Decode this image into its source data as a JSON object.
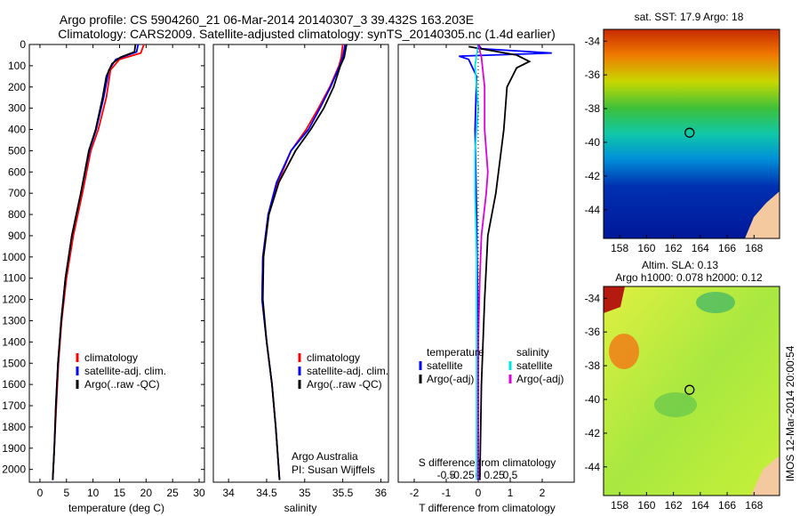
{
  "title_line1": "Argo profile: CS 5904260_21 06-Mar-2014 20140307_3 39.432S 163.203E",
  "title_line2": "Climatology: CARS2009. Satellite-adjusted climatology: synTS_20140305.nc (1.4d earlier)",
  "colors": {
    "clim": "#ff0000",
    "sat": "#0000ff",
    "argo": "#000000",
    "sal_sat": "#00e5e5",
    "sal_argo": "#dd00dd"
  },
  "chart_data": [
    {
      "type": "line",
      "xlabel": "temperature (deg C)",
      "xlim": [
        -2,
        31
      ],
      "xticks": [
        0,
        5,
        10,
        15,
        20,
        25,
        30
      ],
      "ylim": [
        2060,
        0
      ],
      "yticks": [
        0,
        100,
        200,
        300,
        400,
        500,
        600,
        700,
        800,
        900,
        1000,
        1100,
        1200,
        1300,
        1400,
        1500,
        1600,
        1700,
        1800,
        1900,
        2000
      ],
      "legend": [
        "climatology",
        "satellite-adj. clim.",
        "Argo(..raw -QC)"
      ],
      "series": [
        {
          "name": "climatology",
          "points": [
            [
              19.6,
              0
            ],
            [
              19,
              40
            ],
            [
              15,
              70
            ],
            [
              13.3,
              120
            ],
            [
              12.5,
              250
            ],
            [
              11,
              400
            ],
            [
              9.6,
              500
            ],
            [
              8,
              700
            ],
            [
              6.3,
              900
            ],
            [
              5,
              1100
            ],
            [
              4.1,
              1300
            ],
            [
              3.5,
              1500
            ],
            [
              3.1,
              1700
            ],
            [
              2.7,
              1900
            ],
            [
              2.4,
              2050
            ]
          ]
        },
        {
          "name": "satellite-adj. clim.",
          "points": [
            [
              18.5,
              0
            ],
            [
              18.2,
              35
            ],
            [
              14.3,
              70
            ],
            [
              13,
              120
            ],
            [
              12,
              250
            ],
            [
              10.6,
              400
            ],
            [
              9.3,
              500
            ],
            [
              7.7,
              700
            ],
            [
              6,
              900
            ],
            [
              4.8,
              1100
            ],
            [
              4,
              1300
            ],
            [
              3.4,
              1500
            ],
            [
              3,
              1700
            ],
            [
              2.7,
              1900
            ],
            [
              2.4,
              2050
            ]
          ]
        },
        {
          "name": "Argo(..raw -QC)",
          "points": [
            [
              18,
              0
            ],
            [
              17.8,
              35
            ],
            [
              15.2,
              60
            ],
            [
              13.6,
              90
            ],
            [
              12.5,
              150
            ],
            [
              11.8,
              250
            ],
            [
              10.5,
              400
            ],
            [
              9.2,
              500
            ],
            [
              7.7,
              700
            ],
            [
              6,
              900
            ],
            [
              4.8,
              1100
            ],
            [
              4,
              1300
            ],
            [
              3.4,
              1500
            ],
            [
              3,
              1700
            ],
            [
              2.7,
              1900
            ],
            [
              2.4,
              2050
            ]
          ]
        }
      ]
    },
    {
      "type": "line",
      "xlabel": "salinity",
      "xlim": [
        33.8,
        36.1
      ],
      "xticks": [
        34,
        34.5,
        35,
        35.5,
        36
      ],
      "ylim": [
        2060,
        0
      ],
      "legend": [
        "climatology",
        "satellite-adj. clim.",
        "Argo(..raw -QC)"
      ],
      "series": [
        {
          "name": "climatology",
          "points": [
            [
              35.5,
              0
            ],
            [
              35.48,
              60
            ],
            [
              35.45,
              100
            ],
            [
              35.33,
              200
            ],
            [
              35.18,
              300
            ],
            [
              35.02,
              400
            ],
            [
              34.82,
              500
            ],
            [
              34.65,
              650
            ],
            [
              34.52,
              800
            ],
            [
              34.45,
              1000
            ],
            [
              34.44,
              1200
            ],
            [
              34.5,
              1400
            ],
            [
              34.57,
              1600
            ],
            [
              34.62,
              1800
            ],
            [
              34.67,
              2050
            ]
          ]
        },
        {
          "name": "satellite-adj. clim.",
          "points": [
            [
              35.53,
              0
            ],
            [
              35.5,
              60
            ],
            [
              35.46,
              100
            ],
            [
              35.34,
              200
            ],
            [
              35.2,
              300
            ],
            [
              35.05,
              400
            ],
            [
              34.82,
              500
            ],
            [
              34.63,
              650
            ],
            [
              34.52,
              800
            ],
            [
              34.45,
              1000
            ],
            [
              34.44,
              1200
            ],
            [
              34.5,
              1400
            ],
            [
              34.57,
              1600
            ],
            [
              34.62,
              1800
            ],
            [
              34.67,
              2050
            ]
          ]
        },
        {
          "name": "Argo(..raw -QC)",
          "points": [
            [
              35.55,
              0
            ],
            [
              35.52,
              60
            ],
            [
              35.47,
              100
            ],
            [
              35.38,
              200
            ],
            [
              35.25,
              300
            ],
            [
              35.08,
              400
            ],
            [
              34.88,
              500
            ],
            [
              34.66,
              650
            ],
            [
              34.53,
              800
            ],
            [
              34.46,
              1000
            ],
            [
              34.45,
              1200
            ],
            [
              34.5,
              1400
            ],
            [
              34.57,
              1600
            ],
            [
              34.62,
              1800
            ],
            [
              34.67,
              2050
            ]
          ]
        }
      ]
    },
    {
      "type": "line",
      "xlabel": "T difference from climatology",
      "xlim": [
        -2.5,
        3
      ],
      "xticks": [
        -2,
        -1,
        0,
        1,
        2
      ],
      "x2label": "S difference from climatology",
      "x2ticks": [
        "-0.5",
        "-0.25",
        "0",
        "0.25",
        "0.5"
      ],
      "ylim": [
        2060,
        0
      ],
      "legend": [
        "temperature",
        "satellite",
        "Argo(-adj)",
        "salinity",
        "satellite",
        "Argo(-adj)"
      ],
      "series": [
        {
          "name": "satellite",
          "points": [
            [
              0,
              0
            ],
            [
              0.1,
              20
            ],
            [
              2.3,
              40
            ],
            [
              -0.6,
              55
            ],
            [
              -0.3,
              70
            ],
            [
              -0.05,
              150
            ],
            [
              -0.1,
              400
            ],
            [
              -0.05,
              800
            ],
            [
              0,
              1400
            ],
            [
              0,
              2050
            ]
          ]
        },
        {
          "name": "Argo(-adj)",
          "points": [
            [
              -0.3,
              10
            ],
            [
              1.2,
              50
            ],
            [
              1.6,
              80
            ],
            [
              1.2,
              110
            ],
            [
              0.9,
              200
            ],
            [
              0.8,
              400
            ],
            [
              0.55,
              700
            ],
            [
              0.3,
              900
            ],
            [
              0.2,
              1200
            ],
            [
              0.1,
              1600
            ],
            [
              0.05,
              2050
            ]
          ]
        },
        {
          "name": "satellite",
          "points": [
            [
              0,
              0
            ],
            [
              -0.1,
              100
            ],
            [
              0,
              300
            ],
            [
              -0.1,
              500
            ],
            [
              -0.1,
              700
            ],
            [
              -0.05,
              1000
            ],
            [
              -0.05,
              1500
            ],
            [
              -0.05,
              2050
            ]
          ]
        },
        {
          "name": "Argo(-adj)",
          "points": [
            [
              0,
              0
            ],
            [
              0.1,
              60
            ],
            [
              0.2,
              200
            ],
            [
              0.2,
              400
            ],
            [
              0.3,
              600
            ],
            [
              0.25,
              700
            ],
            [
              0.1,
              900
            ],
            [
              0.05,
              1100
            ],
            [
              0,
              1400
            ],
            [
              0,
              2050
            ]
          ]
        }
      ]
    },
    {
      "type": "heatmap",
      "title": "sat. SST: 17.9 Argo: 18",
      "xticks": [
        158,
        160,
        162,
        164,
        166,
        168
      ],
      "yticks": [
        -34,
        -36,
        -38,
        -40,
        -42,
        -44
      ],
      "marker": [
        163.2,
        -39.43
      ]
    },
    {
      "type": "heatmap",
      "title": "Altim. SLA: 0.13",
      "subtitle": "Argo h1000: 0.078 h2000: 0.12",
      "xticks": [
        158,
        160,
        162,
        164,
        166,
        168
      ],
      "yticks": [
        -34,
        -36,
        -38,
        -40,
        -42,
        -44
      ],
      "marker": [
        163.2,
        -39.43
      ]
    }
  ],
  "annotations": {
    "org": "Argo Australia",
    "pi": "PI: Susan Wijffels"
  },
  "side_label": "IMOS 12-Mar-2014 20:00:54"
}
